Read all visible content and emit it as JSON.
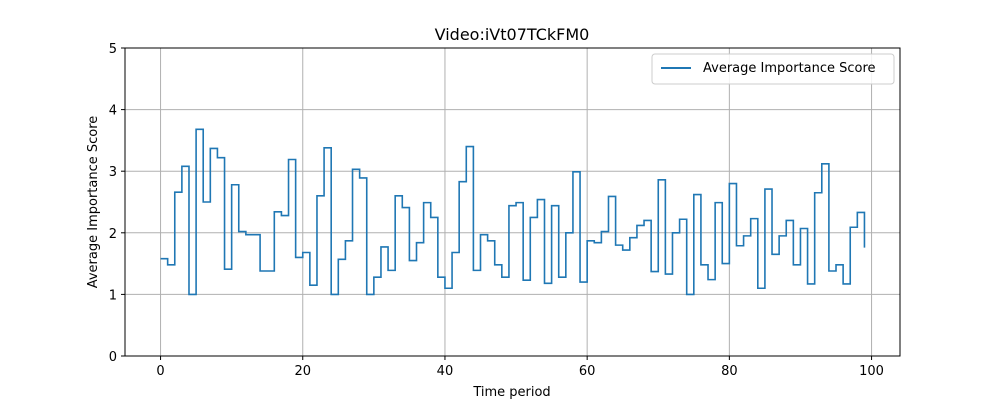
{
  "chart_data": {
    "type": "line",
    "step": "post",
    "title": "Video:iVt07TCkFM0",
    "xlabel": "Time period",
    "ylabel": "Average Importance Score",
    "xlim": [
      -5,
      104
    ],
    "ylim": [
      0,
      5
    ],
    "xticks": [
      0,
      20,
      40,
      60,
      80,
      100
    ],
    "yticks": [
      0,
      1,
      2,
      3,
      4,
      5
    ],
    "grid": true,
    "legend_position": "top-right",
    "series": [
      {
        "name": "Average Importance Score",
        "color": "#1f77b4",
        "x": [
          0,
          1,
          2,
          3,
          4,
          5,
          6,
          7,
          8,
          9,
          10,
          11,
          12,
          13,
          14,
          15,
          16,
          17,
          18,
          19,
          20,
          21,
          22,
          23,
          24,
          25,
          26,
          27,
          28,
          29,
          30,
          31,
          32,
          33,
          34,
          35,
          36,
          37,
          38,
          39,
          40,
          41,
          42,
          43,
          44,
          45,
          46,
          47,
          48,
          49,
          50,
          51,
          52,
          53,
          54,
          55,
          56,
          57,
          58,
          59,
          60,
          61,
          62,
          63,
          64,
          65,
          66,
          67,
          68,
          69,
          70,
          71,
          72,
          73,
          74,
          75,
          76,
          77,
          78,
          79,
          80,
          81,
          82,
          83,
          84,
          85,
          86,
          87,
          88,
          89,
          90,
          91,
          92,
          93,
          94,
          95,
          96,
          97,
          98,
          99
        ],
        "y": [
          1.58,
          1.48,
          2.66,
          3.08,
          1.0,
          3.68,
          2.5,
          3.37,
          3.22,
          1.41,
          2.78,
          2.02,
          1.97,
          1.97,
          1.38,
          1.38,
          2.34,
          2.28,
          3.19,
          1.6,
          1.68,
          1.15,
          2.6,
          3.38,
          1.0,
          1.57,
          1.87,
          3.03,
          2.89,
          1.0,
          1.28,
          1.77,
          1.39,
          2.6,
          2.41,
          1.55,
          1.84,
          2.49,
          2.25,
          1.28,
          1.1,
          1.68,
          2.83,
          3.4,
          1.39,
          1.97,
          1.87,
          1.48,
          1.28,
          2.44,
          2.49,
          1.23,
          2.25,
          2.54,
          1.18,
          2.44,
          1.28,
          2.0,
          2.99,
          1.2,
          1.87,
          1.84,
          2.02,
          2.59,
          1.8,
          1.72,
          1.92,
          2.12,
          2.2,
          1.37,
          2.86,
          1.33,
          2.0,
          2.22,
          1.0,
          2.62,
          1.48,
          1.24,
          2.49,
          1.5,
          2.8,
          1.79,
          1.95,
          2.23,
          1.1,
          2.71,
          1.65,
          1.95,
          2.2,
          1.48,
          2.07,
          1.17,
          2.65,
          3.12,
          1.38,
          1.48,
          1.17,
          2.09,
          2.33,
          1.76
        ]
      }
    ]
  }
}
